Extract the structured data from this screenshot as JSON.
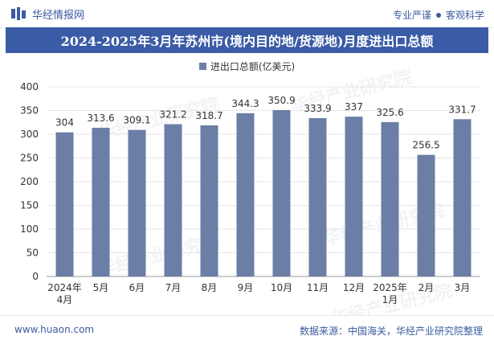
{
  "header": {
    "brand": "华经情报网",
    "tagline_left": "专业严谨",
    "tagline_right": "客观科学"
  },
  "watermark": "华经产业研究院",
  "chart_data": {
    "type": "bar",
    "title": "2024-2025年3月年苏州市(境内目的地/货源地)月度进出口总额",
    "legend": "进出口总额(亿美元)",
    "categories": [
      "2024年\n4月",
      "5月",
      "6月",
      "7月",
      "8月",
      "9月",
      "10月",
      "11月",
      "12月",
      "2025年\n1月",
      "2月",
      "3月"
    ],
    "series": [
      {
        "name": "进出口总额(亿美元)",
        "values": [
          304,
          313.6,
          309.1,
          321.2,
          318.7,
          344.3,
          350.9,
          333.9,
          337,
          325.6,
          256.5,
          331.7
        ]
      }
    ],
    "yticks": [
      0,
      50,
      100,
      150,
      200,
      250,
      300,
      350,
      400
    ],
    "ylim": [
      0,
      400
    ],
    "bar_color": "#6b7ea6",
    "xlabel": "",
    "ylabel": ""
  },
  "footer": {
    "url": "www.huaon.com",
    "source": "数据来源：中国海关，华经产业研究院整理"
  }
}
